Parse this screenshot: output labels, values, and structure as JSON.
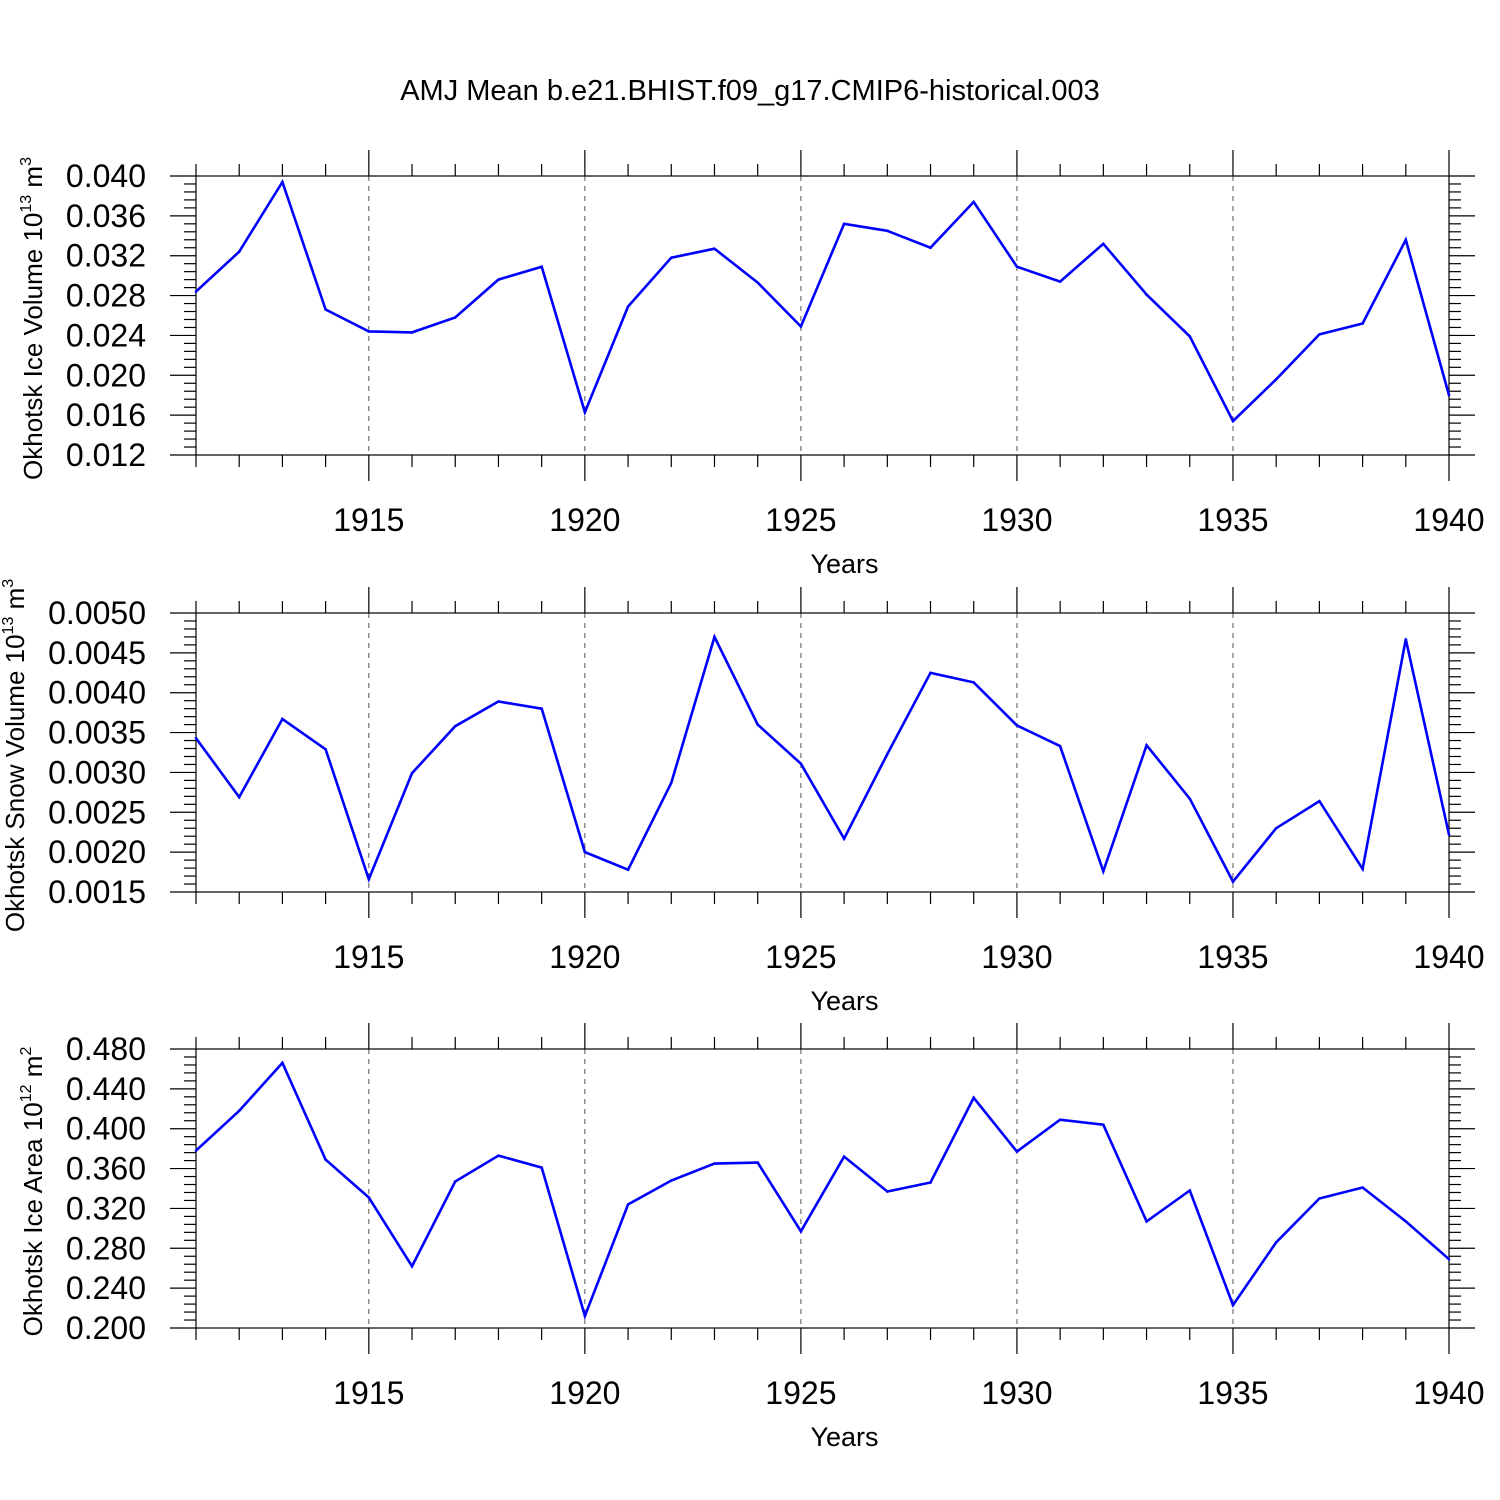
{
  "title": "AMJ Mean b.e21.BHIST.f09_g17.CMIP6-historical.003",
  "colors": {
    "series": "#0000ff",
    "axis": "#000000",
    "grid": "#555555"
  },
  "chart_data": [
    {
      "type": "line",
      "ylabel_main": "Okhotsk Ice Volume 10",
      "ylabel_exp": "13",
      "ylabel_unit": " m",
      "ylabel_unit_exp": "3",
      "xlabel": "Years",
      "xlim": [
        1911,
        1940
      ],
      "ylim": [
        0.012,
        0.04
      ],
      "yticks": [
        "0.012",
        "0.016",
        "0.020",
        "0.024",
        "0.028",
        "0.032",
        "0.036",
        "0.040"
      ],
      "xticks": [
        "1915",
        "1920",
        "1925",
        "1930",
        "1935",
        "1940"
      ],
      "grid": "dashed vertical at major x ticks",
      "x": [
        1911,
        1912,
        1913,
        1914,
        1915,
        1916,
        1917,
        1918,
        1919,
        1920,
        1921,
        1922,
        1923,
        1924,
        1925,
        1926,
        1927,
        1928,
        1929,
        1930,
        1931,
        1932,
        1933,
        1934,
        1935,
        1936,
        1937,
        1938,
        1939,
        1940
      ],
      "values": [
        0.0284,
        0.0324,
        0.0394,
        0.0266,
        0.0244,
        0.0243,
        0.0258,
        0.0296,
        0.0309,
        0.0163,
        0.0269,
        0.0318,
        0.0327,
        0.0293,
        0.0249,
        0.0352,
        0.0345,
        0.0328,
        0.0374,
        0.0309,
        0.0294,
        0.0332,
        0.0281,
        0.0239,
        0.0154,
        0.0196,
        0.0241,
        0.0252,
        0.0336,
        0.018
      ]
    },
    {
      "type": "line",
      "ylabel_main": "Okhotsk Snow Volume 10",
      "ylabel_exp": "13",
      "ylabel_unit": " m",
      "ylabel_unit_exp": "3",
      "xlabel": "Years",
      "xlim": [
        1911,
        1940
      ],
      "ylim": [
        0.0015,
        0.005
      ],
      "yticks": [
        "0.0015",
        "0.0020",
        "0.0025",
        "0.0030",
        "0.0035",
        "0.0040",
        "0.0045",
        "0.0050"
      ],
      "xticks": [
        "1915",
        "1920",
        "1925",
        "1930",
        "1935",
        "1940"
      ],
      "grid": "dashed vertical at major x ticks",
      "x": [
        1911,
        1912,
        1913,
        1914,
        1915,
        1916,
        1917,
        1918,
        1919,
        1920,
        1921,
        1922,
        1923,
        1924,
        1925,
        1926,
        1927,
        1928,
        1929,
        1930,
        1931,
        1932,
        1933,
        1934,
        1935,
        1936,
        1937,
        1938,
        1939,
        1940
      ],
      "values": [
        0.00343,
        0.00269,
        0.00367,
        0.00329,
        0.00166,
        0.00299,
        0.00358,
        0.00389,
        0.0038,
        0.002,
        0.00178,
        0.00287,
        0.0047,
        0.0036,
        0.00311,
        0.00217,
        0.00323,
        0.00425,
        0.00413,
        0.00359,
        0.00333,
        0.00176,
        0.00334,
        0.00267,
        0.00163,
        0.0023,
        0.00264,
        0.00179,
        0.00467,
        0.00222
      ]
    },
    {
      "type": "line",
      "ylabel_main": "Okhotsk Ice Area 10",
      "ylabel_exp": "12",
      "ylabel_unit": " m",
      "ylabel_unit_exp": "2",
      "xlabel": "Years",
      "xlim": [
        1911,
        1940
      ],
      "ylim": [
        0.2,
        0.48
      ],
      "yticks": [
        "0.200",
        "0.240",
        "0.280",
        "0.320",
        "0.360",
        "0.400",
        "0.440",
        "0.480"
      ],
      "xticks": [
        "1915",
        "1920",
        "1925",
        "1930",
        "1935",
        "1940"
      ],
      "grid": "dashed vertical at major x ticks",
      "x": [
        1911,
        1912,
        1913,
        1914,
        1915,
        1916,
        1917,
        1918,
        1919,
        1920,
        1921,
        1922,
        1923,
        1924,
        1925,
        1926,
        1927,
        1928,
        1929,
        1930,
        1931,
        1932,
        1933,
        1934,
        1935,
        1936,
        1937,
        1938,
        1939,
        1940
      ],
      "values": [
        0.378,
        0.418,
        0.466,
        0.369,
        0.331,
        0.262,
        0.347,
        0.373,
        0.361,
        0.212,
        0.324,
        0.348,
        0.365,
        0.366,
        0.297,
        0.372,
        0.337,
        0.346,
        0.431,
        0.377,
        0.409,
        0.404,
        0.307,
        0.338,
        0.223,
        0.286,
        0.33,
        0.341,
        0.307,
        0.269
      ]
    }
  ]
}
